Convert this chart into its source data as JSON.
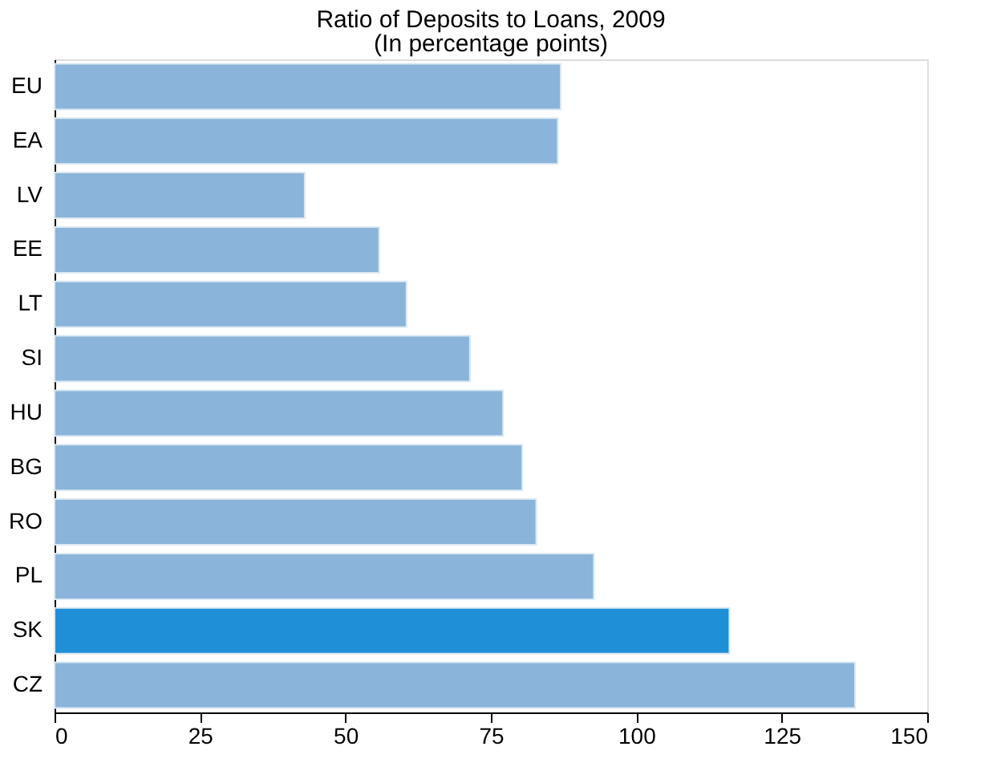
{
  "chart_data": {
    "type": "bar",
    "orientation": "horizontal",
    "title": "Ratio of Deposits to Loans, 2009",
    "subtitle": "(In percentage points)",
    "categories": [
      "EU",
      "EA",
      "LV",
      "EE",
      "LT",
      "SI",
      "HU",
      "BG",
      "RO",
      "PL",
      "SK",
      "CZ"
    ],
    "values": [
      87.0,
      86.5,
      43.0,
      55.8,
      60.5,
      71.4,
      77.1,
      80.4,
      82.8,
      92.7,
      116.0,
      137.6
    ],
    "colors": [
      "#8ab4d9",
      "#8ab4d9",
      "#8ab4d9",
      "#8ab4d9",
      "#8ab4d9",
      "#8ab4d9",
      "#8ab4d9",
      "#8ab4d9",
      "#8ab4d9",
      "#8ab4d9",
      "#1f8fd8",
      "#8ab4d9"
    ],
    "xlim": [
      0,
      150
    ],
    "xticks": [
      0,
      25,
      50,
      75,
      100,
      125,
      150
    ],
    "grid": false
  }
}
